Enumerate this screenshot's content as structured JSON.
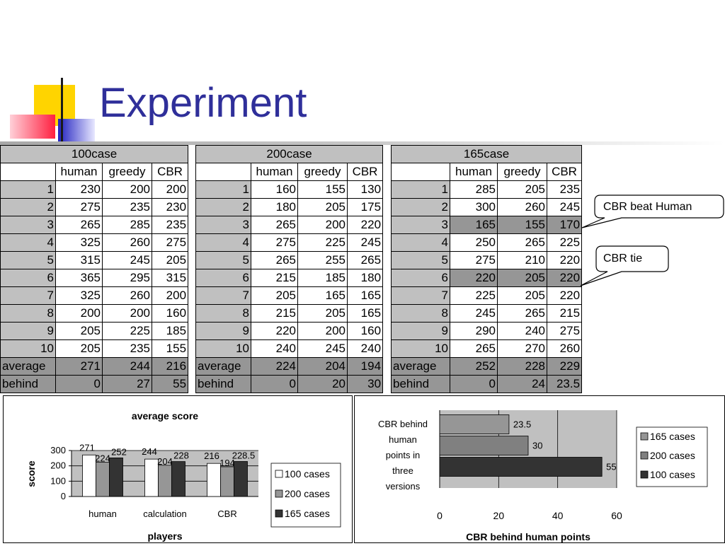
{
  "slide": {
    "title": "Experiment"
  },
  "tables": [
    {
      "title": "100case",
      "headers": [
        "human",
        "greedy",
        "CBR"
      ],
      "rows": [
        {
          "label": "1",
          "values": [
            "230",
            "200",
            "200"
          ]
        },
        {
          "label": "2",
          "values": [
            "275",
            "235",
            "230"
          ]
        },
        {
          "label": "3",
          "values": [
            "265",
            "285",
            "235"
          ]
        },
        {
          "label": "4",
          "values": [
            "325",
            "260",
            "275"
          ]
        },
        {
          "label": "5",
          "values": [
            "315",
            "245",
            "205"
          ]
        },
        {
          "label": "6",
          "values": [
            "365",
            "295",
            "315"
          ]
        },
        {
          "label": "7",
          "values": [
            "325",
            "260",
            "200"
          ]
        },
        {
          "label": "8",
          "values": [
            "200",
            "200",
            "160"
          ]
        },
        {
          "label": "9",
          "values": [
            "205",
            "225",
            "185"
          ]
        },
        {
          "label": "10",
          "values": [
            "205",
            "235",
            "155"
          ]
        }
      ],
      "average": {
        "label": "average",
        "values": [
          "271",
          "244",
          "216"
        ]
      },
      "behind": {
        "label": "behind",
        "values": [
          "0",
          "27",
          "55"
        ]
      }
    },
    {
      "title": "200case",
      "headers": [
        "human",
        "greedy",
        "CBR"
      ],
      "rows": [
        {
          "label": "1",
          "values": [
            "160",
            "155",
            "130"
          ]
        },
        {
          "label": "2",
          "values": [
            "180",
            "205",
            "175"
          ]
        },
        {
          "label": "3",
          "values": [
            "265",
            "200",
            "220"
          ]
        },
        {
          "label": "4",
          "values": [
            "275",
            "225",
            "245"
          ]
        },
        {
          "label": "5",
          "values": [
            "265",
            "255",
            "265"
          ]
        },
        {
          "label": "6",
          "values": [
            "215",
            "185",
            "180"
          ]
        },
        {
          "label": "7",
          "values": [
            "205",
            "165",
            "165"
          ]
        },
        {
          "label": "8",
          "values": [
            "215",
            "205",
            "165"
          ]
        },
        {
          "label": "9",
          "values": [
            "220",
            "200",
            "160"
          ]
        },
        {
          "label": "10",
          "values": [
            "240",
            "245",
            "240"
          ]
        }
      ],
      "average": {
        "label": "average",
        "values": [
          "224",
          "204",
          "194"
        ]
      },
      "behind": {
        "label": "behind",
        "values": [
          "0",
          "20",
          "30"
        ]
      }
    },
    {
      "title": "165case",
      "headers": [
        "human",
        "greedy",
        "CBR"
      ],
      "rows": [
        {
          "label": "1",
          "values": [
            "285",
            "205",
            "235"
          ]
        },
        {
          "label": "2",
          "values": [
            "300",
            "260",
            "245"
          ]
        },
        {
          "label": "3",
          "values": [
            "165",
            "155",
            "170"
          ],
          "highlight": true
        },
        {
          "label": "4",
          "values": [
            "250",
            "265",
            "225"
          ]
        },
        {
          "label": "5",
          "values": [
            "275",
            "210",
            "220"
          ]
        },
        {
          "label": "6",
          "values": [
            "220",
            "205",
            "220"
          ],
          "highlight": true
        },
        {
          "label": "7",
          "values": [
            "225",
            "205",
            "220"
          ]
        },
        {
          "label": "8",
          "values": [
            "245",
            "265",
            "215"
          ]
        },
        {
          "label": "9",
          "values": [
            "290",
            "240",
            "275"
          ]
        },
        {
          "label": "10",
          "values": [
            "265",
            "270",
            "260"
          ]
        }
      ],
      "average": {
        "label": "average",
        "values": [
          "252",
          "228",
          "229"
        ]
      },
      "behind": {
        "label": "behind",
        "values": [
          "0",
          "24",
          "23.5"
        ]
      }
    }
  ],
  "callouts": [
    {
      "text": "CBR beat Human"
    },
    {
      "text": "CBR tie"
    }
  ],
  "chart_data": [
    {
      "type": "bar",
      "title": "average score",
      "xlabel": "players",
      "ylabel": "score",
      "categories": [
        "human",
        "calculation",
        "CBR"
      ],
      "series": [
        {
          "name": "100 cases",
          "values": [
            271,
            244,
            216
          ],
          "labels": [
            "271",
            "244",
            "216"
          ],
          "color": "#ffffff"
        },
        {
          "name": "200 cases",
          "values": [
            224,
            204,
            194
          ],
          "labels": [
            "224",
            "204",
            "194"
          ],
          "color": "#969696"
        },
        {
          "name": "165 cases",
          "values": [
            252,
            228,
            228.5
          ],
          "labels": [
            "252",
            "228",
            "228.5"
          ],
          "color": "#333333"
        }
      ],
      "yticks": [
        "0",
        "100",
        "200",
        "300"
      ],
      "ylim": [
        0,
        300
      ],
      "legend": "right"
    },
    {
      "type": "bar",
      "orientation": "horizontal",
      "title": "CBR behind human points",
      "category_label": "CBR behind human points in three versions",
      "categories": [
        "165 cases",
        "200 cases",
        "100 cases"
      ],
      "values": [
        23.5,
        30,
        55
      ],
      "labels": [
        "23.5",
        "30",
        "55"
      ],
      "colors": [
        "#969696",
        "#808080",
        "#333333"
      ],
      "xticks": [
        "0",
        "20",
        "40",
        "60"
      ],
      "xlim": [
        0,
        60
      ],
      "legend_entries": [
        "165 cases",
        "200 cases",
        "100 cases"
      ],
      "legend": "right"
    }
  ]
}
